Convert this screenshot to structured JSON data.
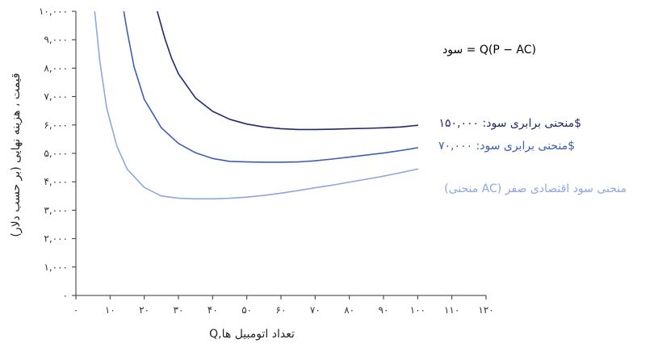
{
  "chart_data": {
    "type": "line",
    "title": "",
    "xlabel": "Q,تعداد اتومبیل ها",
    "ylabel": "قیمت ، هزینه نهایی (بر حسب دلار)",
    "xlim": [
      0,
      120
    ],
    "ylim": [
      0,
      10000
    ],
    "xticks": [
      0,
      10,
      20,
      30,
      40,
      50,
      60,
      70,
      80,
      90,
      100,
      110,
      120
    ],
    "xtick_labels": [
      "۰",
      "۱۰",
      "۲۰",
      "۳۰",
      "۴۰",
      "۵۰",
      "۶۰",
      "۷۰",
      "۸۰",
      "۹۰",
      "۱۰۰",
      "۱۱۰",
      "۱۲۰"
    ],
    "yticks": [
      0,
      1000,
      2000,
      3000,
      4000,
      5000,
      6000,
      7000,
      8000,
      9000,
      10000
    ],
    "ytick_labels": [
      "۰",
      "۱,۰۰۰",
      "۲,۰۰۰",
      "۳,۰۰۰",
      "۴,۰۰۰",
      "۵,۰۰۰",
      "۶,۰۰۰",
      "۷,۰۰۰",
      "۸,۰۰۰",
      "۹,۰۰۰",
      "۱۰,۰۰۰"
    ],
    "grid": false,
    "series": [
      {
        "name": "منحنی برابری سود: ۱۵۰,۰۰۰$",
        "color": "#1f2a6b",
        "points": [
          [
            23.8,
            10000
          ],
          [
            26,
            9050
          ],
          [
            28,
            8350
          ],
          [
            30,
            7800
          ],
          [
            35,
            6950
          ],
          [
            40,
            6480
          ],
          [
            45,
            6200
          ],
          [
            50,
            6030
          ],
          [
            55,
            5930
          ],
          [
            60,
            5870
          ],
          [
            65,
            5840
          ],
          [
            70,
            5840
          ],
          [
            75,
            5850
          ],
          [
            80,
            5870
          ],
          [
            85,
            5880
          ],
          [
            90,
            5900
          ],
          [
            95,
            5930
          ],
          [
            100,
            5990
          ]
        ]
      },
      {
        "name": "منحنی برابری سود: ۷۰,۰۰۰$",
        "color": "#3e5db3",
        "points": [
          [
            14,
            10000
          ],
          [
            15,
            9300
          ],
          [
            17,
            8050
          ],
          [
            20,
            6900
          ],
          [
            25,
            5900
          ],
          [
            30,
            5350
          ],
          [
            35,
            5020
          ],
          [
            40,
            4820
          ],
          [
            45,
            4720
          ],
          [
            50,
            4700
          ],
          [
            55,
            4690
          ],
          [
            60,
            4690
          ],
          [
            65,
            4700
          ],
          [
            70,
            4740
          ],
          [
            75,
            4800
          ],
          [
            80,
            4870
          ],
          [
            85,
            4940
          ],
          [
            90,
            5010
          ],
          [
            95,
            5100
          ],
          [
            100,
            5200
          ]
        ]
      },
      {
        "name": "(منحنی AC) منحنی سود اقتصادی صفر",
        "color": "#8ea7e0",
        "points": [
          [
            5.5,
            10000
          ],
          [
            7,
            8250
          ],
          [
            9,
            6600
          ],
          [
            12,
            5250
          ],
          [
            15,
            4450
          ],
          [
            20,
            3800
          ],
          [
            25,
            3500
          ],
          [
            30,
            3420
          ],
          [
            35,
            3400
          ],
          [
            40,
            3400
          ],
          [
            45,
            3420
          ],
          [
            50,
            3460
          ],
          [
            55,
            3520
          ],
          [
            60,
            3600
          ],
          [
            65,
            3690
          ],
          [
            70,
            3790
          ],
          [
            75,
            3880
          ],
          [
            80,
            3990
          ],
          [
            85,
            4090
          ],
          [
            90,
            4200
          ],
          [
            95,
            4320
          ],
          [
            100,
            4450
          ]
        ]
      }
    ],
    "annotations": [
      {
        "text": "سود = Q(P − AC)",
        "color": "#222222"
      }
    ]
  }
}
